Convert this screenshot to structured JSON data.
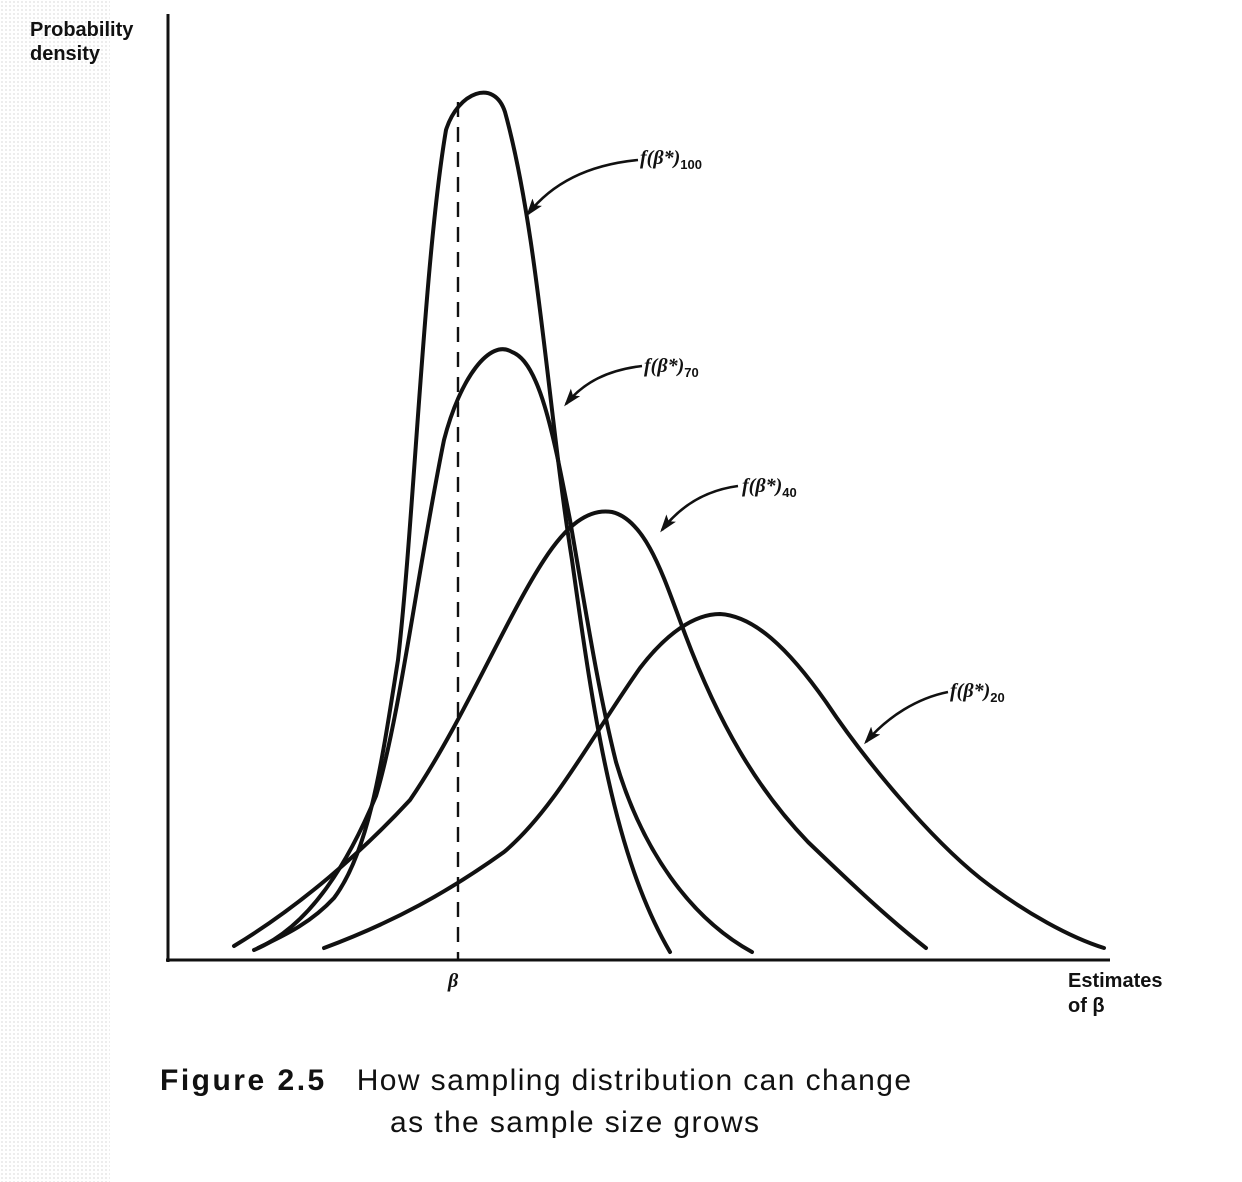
{
  "diagram": {
    "y_axis_label": [
      "Probability",
      "density"
    ],
    "x_axis_label": [
      "Estimates",
      "of β"
    ],
    "x_tick_label": "β",
    "curves": [
      {
        "label": "f(β*)",
        "subscript": "100"
      },
      {
        "label": "f(β*)",
        "subscript": "70"
      },
      {
        "label": "f(β*)",
        "subscript": "40"
      },
      {
        "label": "f(β*)",
        "subscript": "20"
      }
    ]
  },
  "caption": {
    "number": "Figure 2.5",
    "text_line1": "How sampling distribution can change",
    "text_line2": "as the sample size grows"
  },
  "colors": {
    "ink": "#111111",
    "background": "#ffffff"
  }
}
